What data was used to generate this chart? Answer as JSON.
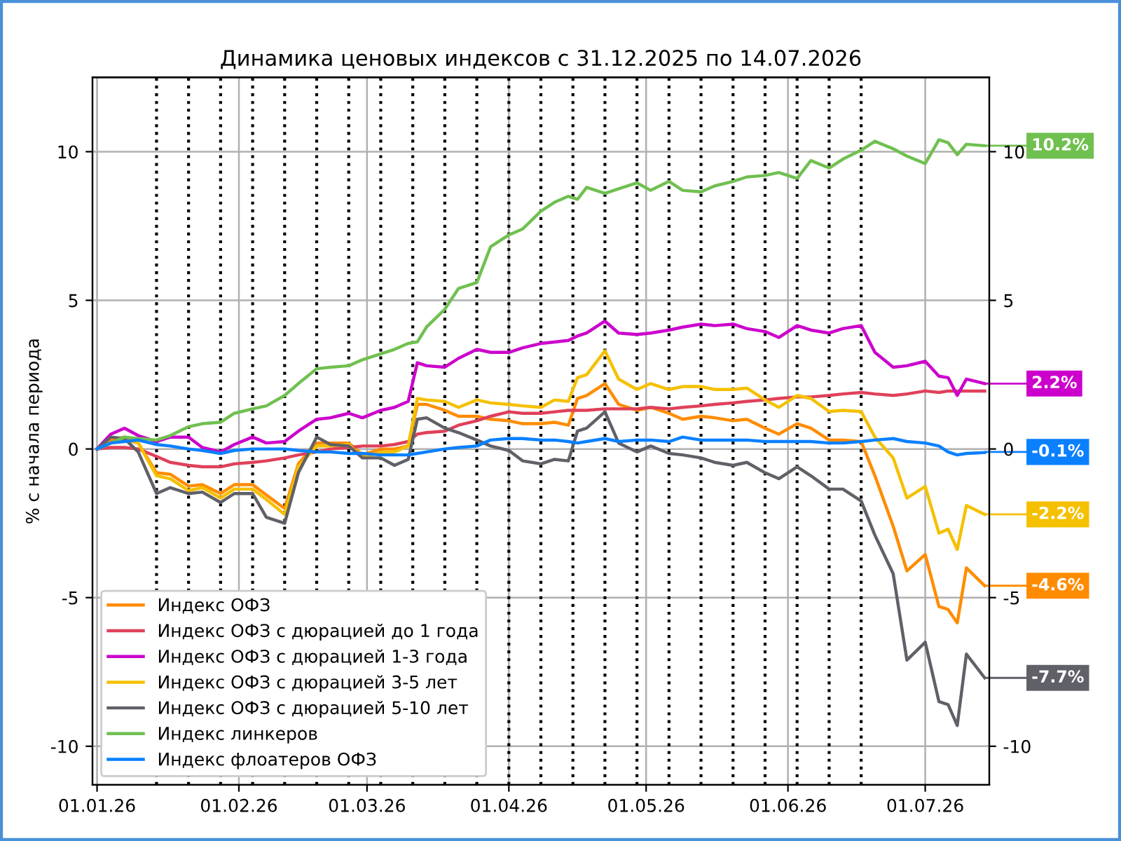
{
  "chart_data": {
    "type": "line",
    "title": "Динамика ценовых индексов с 31.12.2025 по 14.07.2026",
    "ylabel": "% с начала периода",
    "x": [
      "2026-01-01",
      "2026-01-04",
      "2026-01-07",
      "2026-01-10",
      "2026-01-14",
      "2026-01-17",
      "2026-01-21",
      "2026-01-24",
      "2026-01-28",
      "2026-01-31",
      "2026-02-04",
      "2026-02-07",
      "2026-02-11",
      "2026-02-14",
      "2026-02-18",
      "2026-02-21",
      "2026-02-25",
      "2026-02-28",
      "2026-03-04",
      "2026-03-07",
      "2026-03-10",
      "2026-03-12",
      "2026-03-14",
      "2026-03-18",
      "2026-03-21",
      "2026-03-25",
      "2026-03-28",
      "2026-04-01",
      "2026-04-04",
      "2026-04-08",
      "2026-04-11",
      "2026-04-14",
      "2026-04-16",
      "2026-04-18",
      "2026-04-22",
      "2026-04-25",
      "2026-04-29",
      "2026-05-02",
      "2026-05-06",
      "2026-05-09",
      "2026-05-13",
      "2026-05-16",
      "2026-05-20",
      "2026-05-23",
      "2026-05-27",
      "2026-05-30",
      "2026-06-03",
      "2026-06-06",
      "2026-06-10",
      "2026-06-13",
      "2026-06-17",
      "2026-06-20",
      "2026-06-24",
      "2026-06-27",
      "2026-07-01",
      "2026-07-04",
      "2026-07-06",
      "2026-07-08",
      "2026-07-10",
      "2026-07-14"
    ],
    "series": [
      {
        "name": "Индекс ОФЗ",
        "color": "#ff8c00",
        "values": [
          0,
          0.3,
          0.4,
          0.2,
          -0.8,
          -0.85,
          -1.25,
          -1.2,
          -1.5,
          -1.2,
          -1.2,
          -1.55,
          -2.0,
          -0.5,
          0.2,
          0.2,
          0.2,
          -0.2,
          0,
          0,
          0.1,
          1.5,
          1.5,
          1.3,
          1.1,
          1.1,
          1.0,
          0.95,
          0.85,
          0.85,
          0.9,
          0.8,
          1.7,
          1.8,
          2.2,
          1.5,
          1.3,
          1.4,
          1.2,
          1.0,
          1.1,
          1.05,
          0.95,
          1.0,
          0.7,
          0.5,
          0.85,
          0.7,
          0.3,
          0.3,
          0.25,
          -0.9,
          -2.6,
          -4.1,
          -3.55,
          -5.3,
          -5.4,
          -5.85,
          -4.0,
          -4.6
        ]
      },
      {
        "name": "Индекс ОФЗ с дюрацией до 1 года",
        "color": "#e0405a",
        "values": [
          0,
          0.05,
          0.05,
          0.0,
          -0.25,
          -0.45,
          -0.55,
          -0.6,
          -0.6,
          -0.5,
          -0.45,
          -0.4,
          -0.3,
          -0.2,
          -0.1,
          0.0,
          0.05,
          0.1,
          0.1,
          0.15,
          0.25,
          0.5,
          0.55,
          0.6,
          0.8,
          0.95,
          1.1,
          1.25,
          1.2,
          1.2,
          1.25,
          1.3,
          1.3,
          1.3,
          1.35,
          1.35,
          1.35,
          1.4,
          1.35,
          1.4,
          1.45,
          1.5,
          1.55,
          1.6,
          1.65,
          1.7,
          1.75,
          1.75,
          1.8,
          1.85,
          1.9,
          1.85,
          1.8,
          1.85,
          1.95,
          1.9,
          1.95,
          1.95,
          1.95,
          1.95
        ]
      },
      {
        "name": "Индекс ОФЗ с дюрацией 1-3 года",
        "color": "#cc00cc",
        "values": [
          0,
          0.5,
          0.7,
          0.45,
          0.25,
          0.4,
          0.4,
          0.05,
          -0.1,
          0.15,
          0.4,
          0.2,
          0.25,
          0.6,
          1.0,
          1.05,
          1.2,
          1.05,
          1.3,
          1.4,
          1.6,
          2.9,
          2.8,
          2.75,
          3.05,
          3.35,
          3.25,
          3.25,
          3.4,
          3.55,
          3.6,
          3.65,
          3.8,
          3.9,
          4.3,
          3.9,
          3.85,
          3.9,
          4.0,
          4.1,
          4.2,
          4.15,
          4.2,
          4.05,
          3.95,
          3.75,
          4.15,
          4.0,
          3.9,
          4.05,
          4.15,
          3.25,
          2.75,
          2.8,
          2.95,
          2.45,
          2.4,
          1.8,
          2.35,
          2.2
        ]
      },
      {
        "name": "Индекс ОФЗ с дюрацией 3-5 лет",
        "color": "#f5c000",
        "values": [
          0,
          0.2,
          0.3,
          0.2,
          -0.9,
          -1.0,
          -1.4,
          -1.3,
          -1.65,
          -1.35,
          -1.35,
          -1.7,
          -2.2,
          -0.6,
          0.1,
          0.1,
          0.15,
          -0.3,
          -0.1,
          -0.1,
          0.1,
          1.7,
          1.65,
          1.6,
          1.4,
          1.65,
          1.55,
          1.5,
          1.45,
          1.4,
          1.65,
          1.6,
          2.4,
          2.5,
          3.3,
          2.35,
          2.0,
          2.2,
          2.0,
          2.1,
          2.1,
          2.0,
          2.0,
          2.05,
          1.65,
          1.4,
          1.8,
          1.7,
          1.26,
          1.3,
          1.26,
          0.4,
          -0.3,
          -1.65,
          -1.26,
          -2.83,
          -2.7,
          -3.38,
          -1.9,
          -2.2
        ]
      },
      {
        "name": "Индекс ОФЗ с дюрацией 5-10 лет",
        "color": "#606068",
        "values": [
          0,
          0.4,
          0.35,
          -0.1,
          -1.5,
          -1.3,
          -1.5,
          -1.45,
          -1.8,
          -1.5,
          -1.5,
          -2.3,
          -2.5,
          -0.8,
          0.4,
          0.15,
          0.1,
          -0.3,
          -0.3,
          -0.55,
          -0.35,
          1.0,
          1.05,
          0.7,
          0.55,
          0.3,
          0.1,
          -0.05,
          -0.4,
          -0.5,
          -0.35,
          -0.4,
          0.6,
          0.7,
          1.25,
          0.2,
          -0.1,
          0.1,
          -0.15,
          -0.2,
          -0.3,
          -0.45,
          -0.55,
          -0.45,
          -0.8,
          -1.0,
          -0.6,
          -0.9,
          -1.35,
          -1.35,
          -1.75,
          -2.9,
          -4.2,
          -7.1,
          -6.5,
          -8.5,
          -8.6,
          -9.3,
          -6.9,
          -7.7
        ]
      },
      {
        "name": "Индекс линкеров",
        "color": "#70c050",
        "values": [
          0,
          0.2,
          0.4,
          0.35,
          0.3,
          0.45,
          0.75,
          0.85,
          0.9,
          1.2,
          1.35,
          1.45,
          1.8,
          2.2,
          2.7,
          2.75,
          2.8,
          3.0,
          3.2,
          3.35,
          3.55,
          3.6,
          4.1,
          4.7,
          5.4,
          5.6,
          6.8,
          7.2,
          7.4,
          8.0,
          8.3,
          8.5,
          8.4,
          8.8,
          8.6,
          8.75,
          8.95,
          8.7,
          9.0,
          8.7,
          8.65,
          8.85,
          9.0,
          9.15,
          9.2,
          9.3,
          9.1,
          9.7,
          9.45,
          9.75,
          10.05,
          10.35,
          10.1,
          9.85,
          9.6,
          10.4,
          10.3,
          9.9,
          10.25,
          10.2
        ]
      },
      {
        "name": "Индекс флоатеров ОФЗ",
        "color": "#0a80ff",
        "values": [
          0,
          0.2,
          0.25,
          0.3,
          0.15,
          0.1,
          0.0,
          -0.05,
          -0.15,
          -0.05,
          0.0,
          0.0,
          0.0,
          -0.05,
          -0.1,
          -0.1,
          -0.15,
          -0.15,
          -0.2,
          -0.2,
          -0.2,
          -0.15,
          -0.1,
          0.0,
          0.05,
          0.1,
          0.3,
          0.35,
          0.35,
          0.3,
          0.3,
          0.25,
          0.2,
          0.25,
          0.35,
          0.25,
          0.3,
          0.3,
          0.25,
          0.4,
          0.3,
          0.3,
          0.3,
          0.3,
          0.25,
          0.25,
          0.25,
          0.25,
          0.2,
          0.2,
          0.25,
          0.3,
          0.35,
          0.25,
          0.2,
          0.1,
          -0.1,
          -0.2,
          -0.15,
          -0.12
        ]
      }
    ],
    "xlim": [
      "2025-12-31",
      "2026-07-15"
    ],
    "xticks": [
      {
        "value": "2026-01-01",
        "label": "01.01.26"
      },
      {
        "value": "2026-02-01",
        "label": "01.02.26"
      },
      {
        "value": "2026-03-01",
        "label": "01.03.26"
      },
      {
        "value": "2026-04-01",
        "label": "01.04.26"
      },
      {
        "value": "2026-05-01",
        "label": "01.05.26"
      },
      {
        "value": "2026-06-01",
        "label": "01.06.26"
      },
      {
        "value": "2026-07-01",
        "label": "01.07.26"
      }
    ],
    "ylim": [
      -11.3,
      12.5
    ],
    "yticks": [
      -10,
      -5,
      0,
      5,
      10
    ],
    "y2lim": [
      -11.3,
      12.5
    ],
    "y2ticks": [
      -10,
      -5,
      0,
      5,
      10
    ],
    "ref_lines": [
      {
        "axis": "x",
        "value": "2026-01-14",
        "color": "#000000",
        "line_style": "dotted"
      },
      {
        "axis": "x",
        "value": "2026-01-21",
        "color": "#000000",
        "line_style": "dotted"
      },
      {
        "axis": "x",
        "value": "2026-01-28",
        "color": "#000000",
        "line_style": "dotted"
      },
      {
        "axis": "x",
        "value": "2026-02-04",
        "color": "#000000",
        "line_style": "dotted"
      },
      {
        "axis": "x",
        "value": "2026-02-11",
        "color": "#000000",
        "line_style": "dotted"
      },
      {
        "axis": "x",
        "value": "2026-02-18",
        "color": "#000000",
        "line_style": "dotted"
      },
      {
        "axis": "x",
        "value": "2026-02-25",
        "color": "#000000",
        "line_style": "dotted"
      },
      {
        "axis": "x",
        "value": "2026-03-04",
        "color": "#000000",
        "line_style": "dotted"
      },
      {
        "axis": "x",
        "value": "2026-03-11",
        "color": "#000000",
        "line_style": "dotted"
      },
      {
        "axis": "x",
        "value": "2026-03-18",
        "color": "#000000",
        "line_style": "dotted"
      },
      {
        "axis": "x",
        "value": "2026-03-25",
        "color": "#000000",
        "line_style": "dotted"
      },
      {
        "axis": "x",
        "value": "2026-04-01",
        "color": "#000000",
        "line_style": "dotted"
      },
      {
        "axis": "x",
        "value": "2026-04-08",
        "color": "#000000",
        "line_style": "dotted"
      },
      {
        "axis": "x",
        "value": "2026-04-15",
        "color": "#000000",
        "line_style": "dotted"
      },
      {
        "axis": "x",
        "value": "2026-04-22",
        "color": "#000000",
        "line_style": "dotted"
      },
      {
        "axis": "x",
        "value": "2026-04-29",
        "color": "#000000",
        "line_style": "dotted"
      },
      {
        "axis": "x",
        "value": "2026-05-06",
        "color": "#000000",
        "line_style": "dotted"
      },
      {
        "axis": "x",
        "value": "2026-05-13",
        "color": "#000000",
        "line_style": "dotted"
      },
      {
        "axis": "x",
        "value": "2026-05-20",
        "color": "#000000",
        "line_style": "dotted"
      },
      {
        "axis": "x",
        "value": "2026-05-27",
        "color": "#000000",
        "line_style": "dotted"
      },
      {
        "axis": "x",
        "value": "2026-06-03",
        "color": "#000000",
        "line_style": "dotted"
      },
      {
        "axis": "x",
        "value": "2026-06-10",
        "color": "#000000",
        "line_style": "dotted"
      },
      {
        "axis": "x",
        "value": "2026-06-17",
        "color": "#000000",
        "line_style": "dotted"
      }
    ],
    "annotations": [
      {
        "text": "10.2%",
        "x": "2026-07-14",
        "y": 10.2
      },
      {
        "text": "2.2%",
        "x": "2026-07-14",
        "y": 2.2
      },
      {
        "text": "-0.1%",
        "x": "2026-07-14",
        "y": -0.1
      },
      {
        "text": "-2.2%",
        "x": "2026-07-14",
        "y": -2.2
      },
      {
        "text": "-4.6%",
        "x": "2026-07-14",
        "y": -4.6
      },
      {
        "text": "-7.7%",
        "x": "2026-07-14",
        "y": -7.7
      }
    ],
    "grid": true,
    "legend": "bottom left",
    "marker": "none",
    "line_style": "solid"
  }
}
